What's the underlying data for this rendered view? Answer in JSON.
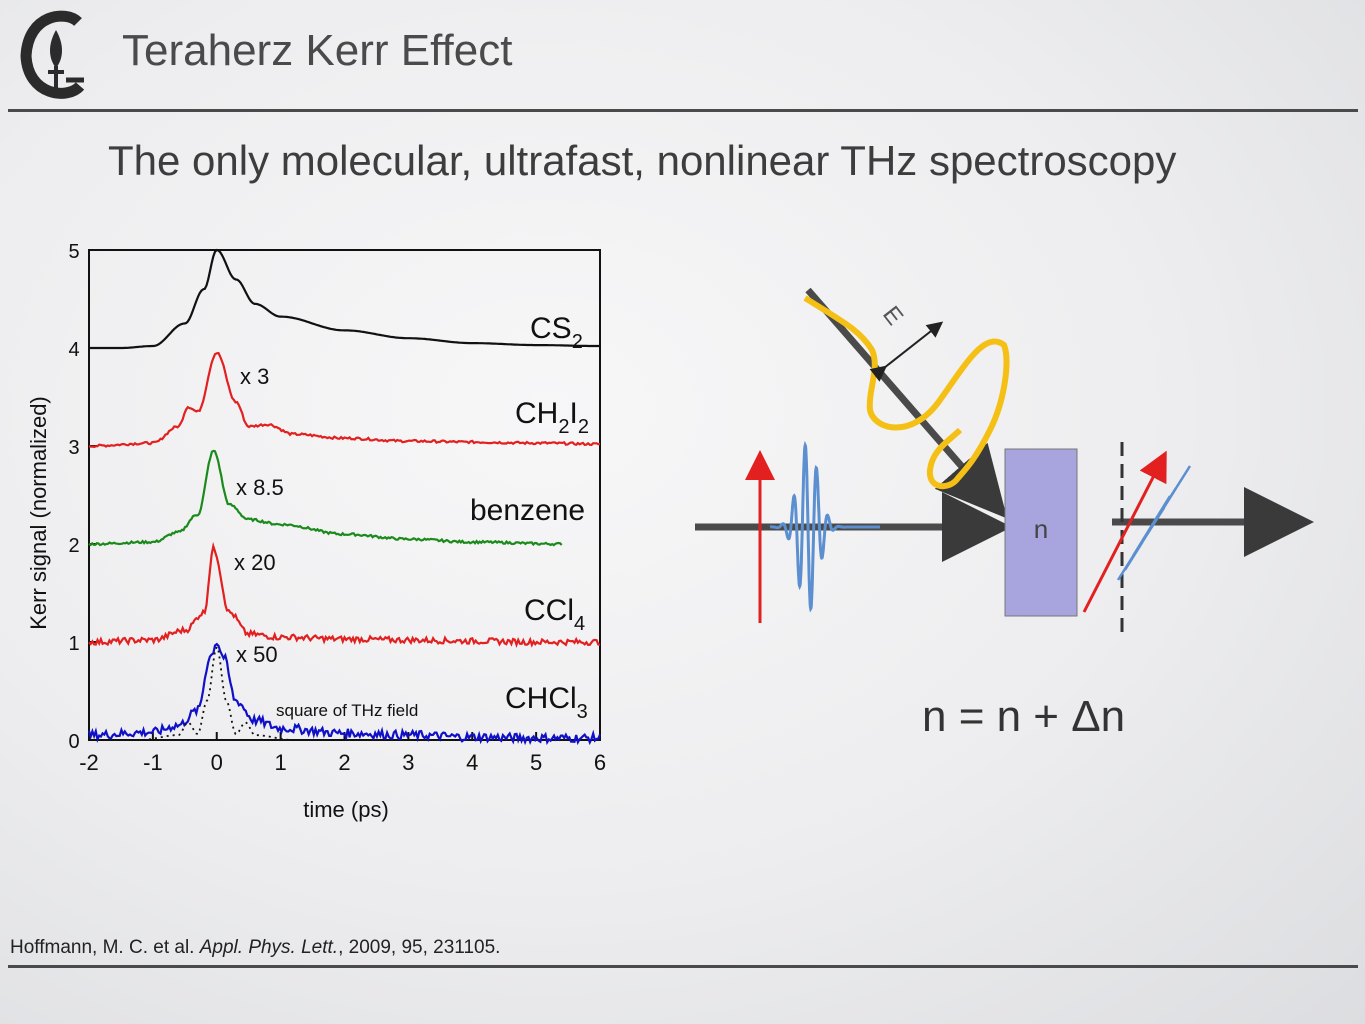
{
  "slide": {
    "title": "Teraherz Kerr Effect",
    "subtitle": "The only molecular, ultrafast, nonlinear THz spectroscopy",
    "citation": {
      "authors": "Hoffmann, M. C. et al.",
      "journal": "Appl. Phys. Lett.",
      "details": ", 2009, 95, 231105."
    }
  },
  "logo_icon": "caltech-flame-logo",
  "diagram": {
    "material_label": "n",
    "field_label": "E",
    "equation": "n = n + Δn",
    "colors": {
      "beam": "#4a4a4a",
      "thz": "#f5c016",
      "probe": "#5b8fd0",
      "polarization": "#e32020",
      "sample": "#a7a4de"
    }
  },
  "chart_data": {
    "type": "line",
    "xlabel": "time (ps)",
    "ylabel": "Kerr signal (normalized)",
    "xlim": [
      -2,
      6
    ],
    "ylim": [
      0,
      5
    ],
    "xticks": [
      "-2",
      "-1",
      "0",
      "1",
      "2",
      "3",
      "4",
      "5",
      "6"
    ],
    "yticks": [
      "0",
      "1",
      "2",
      "3",
      "4",
      "5"
    ],
    "series": [
      {
        "name": "CS2",
        "color": "#111111",
        "offset": 4,
        "peak_time": 0,
        "peak_height": 1.0,
        "end_time": 6,
        "scale": "",
        "x": [
          -2,
          -1.5,
          -1,
          -0.5,
          -0.2,
          0,
          0.3,
          0.6,
          1,
          2,
          3,
          4,
          5,
          6
        ],
        "y": [
          4.0,
          4.0,
          4.02,
          4.25,
          4.6,
          5.0,
          4.7,
          4.45,
          4.32,
          4.18,
          4.1,
          4.05,
          4.03,
          4.02
        ]
      },
      {
        "name": "CH2I2",
        "color": "#e32020",
        "offset": 3,
        "peak_time": 0,
        "peak_height": 0.95,
        "end_time": 6,
        "scale": "x 3",
        "x": [
          -2,
          -1,
          -0.6,
          -0.45,
          -0.3,
          0,
          0.3,
          0.5,
          0.8,
          1.2,
          2,
          3,
          4,
          5,
          6
        ],
        "y": [
          3.0,
          3.03,
          3.2,
          3.4,
          3.35,
          3.95,
          3.45,
          3.2,
          3.22,
          3.12,
          3.08,
          3.05,
          3.04,
          3.03,
          3.02
        ]
      },
      {
        "name": "benzene",
        "color": "#1a8a1a",
        "offset": 2,
        "peak_time": -0.05,
        "peak_height": 0.95,
        "end_time": 5.4,
        "scale": "x 8.5",
        "x": [
          -2,
          -1,
          -0.6,
          -0.3,
          -0.05,
          0.2,
          0.5,
          1,
          2,
          3,
          4,
          5.4
        ],
        "y": [
          2.0,
          2.02,
          2.12,
          2.3,
          2.95,
          2.4,
          2.25,
          2.2,
          2.1,
          2.05,
          2.02,
          2.0
        ]
      },
      {
        "name": "CCl4",
        "color": "#e32020",
        "offset": 1,
        "peak_time": -0.05,
        "peak_height": 0.95,
        "end_time": 6,
        "scale": "x 20",
        "x": [
          -2,
          -1,
          -0.5,
          -0.2,
          -0.05,
          0.2,
          0.5,
          1,
          2,
          3,
          4,
          5,
          6
        ],
        "y": [
          1.0,
          1.02,
          1.12,
          1.3,
          1.95,
          1.3,
          1.08,
          1.05,
          1.03,
          1.02,
          1.01,
          1.0,
          1.0
        ]
      },
      {
        "name": "CHCl3",
        "color": "#1010c8",
        "offset": 0,
        "peak_time": 0,
        "peak_height": 1.0,
        "end_time": 6,
        "scale": "x 50",
        "x": [
          -2,
          -1,
          -0.6,
          -0.3,
          -0.1,
          0,
          0.1,
          0.3,
          0.6,
          1,
          2,
          3,
          4,
          5,
          6
        ],
        "y": [
          0.05,
          0.08,
          0.15,
          0.3,
          0.85,
          1.0,
          0.85,
          0.4,
          0.2,
          0.12,
          0.07,
          0.05,
          0.03,
          0.02,
          0.02
        ]
      },
      {
        "name": "square of THz field",
        "color": "#111111",
        "dashed": true,
        "x": [
          -2,
          -1.2,
          -0.6,
          -0.45,
          -0.3,
          -0.15,
          0,
          0.15,
          0.3,
          0.45,
          0.6,
          1.2
        ],
        "y": [
          0,
          0,
          0.05,
          0.18,
          0.06,
          0.4,
          0.95,
          0.4,
          0.06,
          0.18,
          0.05,
          0
        ]
      }
    ]
  }
}
